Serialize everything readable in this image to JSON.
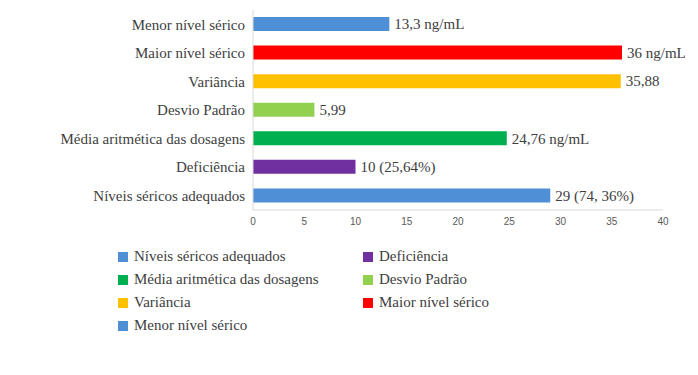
{
  "chart_data": {
    "type": "bar",
    "orientation": "horizontal",
    "categories": [
      "Menor nível sérico",
      "Maior nível sérico",
      "Variância",
      "Desvio Padrão",
      "Média aritmética das dosagens",
      "Deficiência",
      "Níveis séricos adequados"
    ],
    "values": [
      13.3,
      36,
      35.88,
      5.99,
      24.76,
      10,
      29
    ],
    "value_labels": [
      "13,3 ng/mL",
      "36 ng/mL",
      "35,88",
      "5,99",
      "24,76 ng/mL",
      "10 (25,64%)",
      "29 (74, 36%)"
    ],
    "colors": [
      "#4f8fd6",
      "#ff0000",
      "#ffc000",
      "#92d050",
      "#00b050",
      "#7030a0",
      "#4f8fd6"
    ],
    "xlim": [
      0,
      40
    ],
    "xticks": [
      0,
      5,
      10,
      15,
      20,
      25,
      30,
      35,
      40
    ],
    "grid": false,
    "data_labels": true,
    "legend": "bottom"
  }
}
